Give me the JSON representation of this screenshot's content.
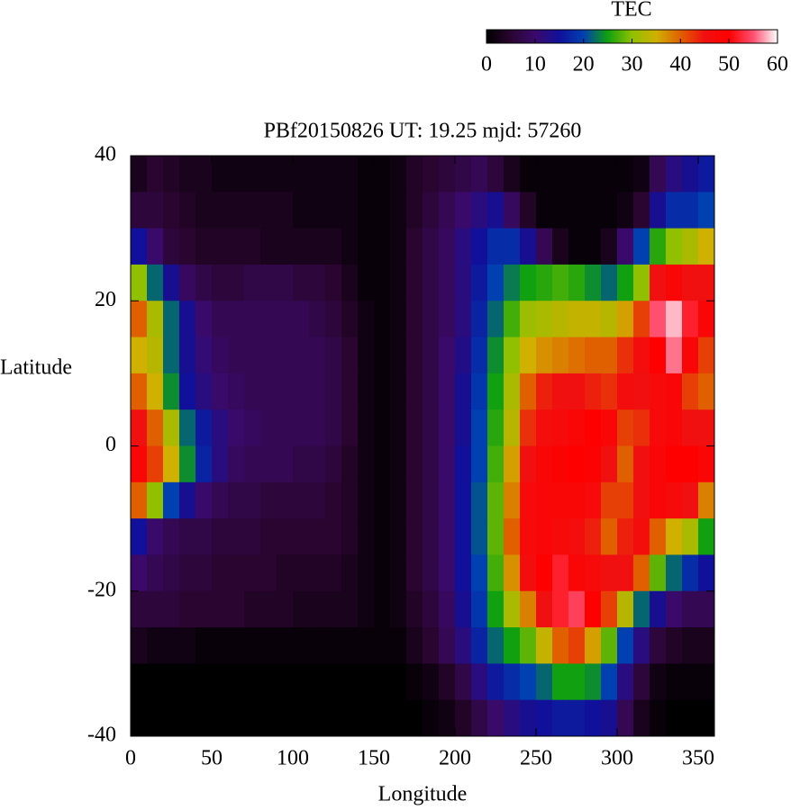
{
  "chart_data": {
    "type": "heatmap",
    "title": "PBf20150826  UT: 19.25  mjd: 57260",
    "x_label": "Longitude",
    "y_label": "Latitude",
    "xlim": [
      0,
      360
    ],
    "xticks": [
      0,
      50,
      100,
      150,
      200,
      250,
      300,
      350
    ],
    "ylim": [
      -40,
      40
    ],
    "yticks": [
      -40,
      -20,
      0,
      20,
      40
    ],
    "x": [
      5,
      15,
      25,
      35,
      45,
      55,
      65,
      75,
      85,
      95,
      105,
      115,
      125,
      135,
      145,
      155,
      165,
      175,
      185,
      195,
      205,
      215,
      225,
      235,
      245,
      255,
      265,
      275,
      285,
      295,
      305,
      315,
      325,
      335,
      345,
      355
    ],
    "y": [
      37.5,
      32.5,
      27.5,
      22.5,
      17.5,
      12.5,
      7.5,
      2.5,
      -2.5,
      -7.5,
      -12.5,
      -17.5,
      -22.5,
      -27.5,
      -32.5,
      -37.5
    ],
    "z": [
      [
        3,
        5,
        4,
        3,
        3,
        2,
        2,
        2,
        2,
        2,
        2,
        2,
        2,
        2,
        1,
        1,
        2,
        4,
        5,
        6,
        7,
        8,
        6,
        3,
        1,
        1,
        1,
        1,
        1,
        1,
        1,
        2,
        8,
        12,
        14,
        16
      ],
      [
        6,
        6,
        5,
        4,
        3,
        3,
        3,
        3,
        3,
        3,
        2,
        2,
        2,
        2,
        1,
        1,
        2,
        4,
        6,
        8,
        10,
        12,
        14,
        9,
        4,
        1,
        1,
        1,
        1,
        1,
        2,
        5,
        14,
        18,
        18,
        20
      ],
      [
        15,
        10,
        6,
        5,
        4,
        4,
        4,
        4,
        3,
        3,
        3,
        3,
        3,
        2,
        1,
        1,
        2,
        5,
        7,
        9,
        12,
        15,
        18,
        18,
        14,
        8,
        3,
        1,
        1,
        3,
        10,
        20,
        26,
        30,
        32,
        35
      ],
      [
        30,
        22,
        14,
        9,
        7,
        6,
        6,
        7,
        7,
        7,
        6,
        6,
        5,
        3,
        1,
        1,
        2,
        5,
        7,
        9,
        12,
        16,
        20,
        23,
        25,
        26,
        27,
        26,
        24,
        22,
        25,
        30,
        45,
        48,
        45,
        45
      ],
      [
        40,
        32,
        22,
        14,
        10,
        8,
        8,
        8,
        8,
        8,
        8,
        7,
        6,
        4,
        2,
        1,
        2,
        5,
        7,
        9,
        12,
        17,
        22,
        27,
        31,
        32,
        33,
        34,
        34,
        33,
        36,
        42,
        55,
        58,
        52,
        48
      ],
      [
        35,
        33,
        22,
        14,
        11,
        9,
        8,
        8,
        8,
        8,
        8,
        8,
        7,
        5,
        2,
        1,
        2,
        5,
        7,
        10,
        13,
        18,
        24,
        30,
        35,
        37,
        38,
        39,
        40,
        40,
        43,
        46,
        50,
        56,
        48,
        42
      ],
      [
        40,
        35,
        24,
        15,
        12,
        10,
        9,
        8,
        8,
        8,
        8,
        8,
        7,
        5,
        2,
        1,
        2,
        5,
        7,
        10,
        14,
        19,
        25,
        32,
        40,
        44,
        45,
        45,
        44,
        43,
        46,
        45,
        47,
        48,
        42,
        40
      ],
      [
        45,
        40,
        32,
        22,
        16,
        12,
        10,
        9,
        8,
        8,
        8,
        8,
        7,
        5,
        2,
        1,
        2,
        5,
        7,
        10,
        14,
        20,
        26,
        33,
        43,
        46,
        47,
        48,
        50,
        48,
        42,
        43,
        47,
        48,
        45,
        45
      ],
      [
        48,
        42,
        35,
        24,
        17,
        12,
        9,
        8,
        8,
        8,
        7,
        7,
        6,
        4,
        2,
        1,
        2,
        5,
        7,
        10,
        15,
        20,
        27,
        36,
        45,
        48,
        49,
        50,
        49,
        45,
        40,
        45,
        48,
        50,
        50,
        48
      ],
      [
        40,
        30,
        20,
        14,
        10,
        8,
        7,
        7,
        6,
        6,
        6,
        6,
        5,
        4,
        2,
        1,
        2,
        5,
        7,
        10,
        15,
        21,
        28,
        38,
        47,
        48,
        48,
        48,
        47,
        42,
        42,
        45,
        48,
        47,
        45,
        38
      ],
      [
        15,
        10,
        8,
        7,
        7,
        6,
        6,
        6,
        5,
        5,
        5,
        5,
        5,
        4,
        2,
        1,
        2,
        5,
        7,
        10,
        15,
        21,
        28,
        40,
        47,
        48,
        47,
        46,
        44,
        40,
        44,
        46,
        40,
        35,
        32,
        25
      ],
      [
        10,
        8,
        7,
        6,
        6,
        5,
        5,
        5,
        5,
        4,
        4,
        4,
        4,
        3,
        2,
        1,
        2,
        5,
        7,
        10,
        15,
        20,
        27,
        37,
        46,
        50,
        52,
        48,
        47,
        45,
        45,
        40,
        28,
        22,
        18,
        15
      ],
      [
        6,
        6,
        6,
        5,
        5,
        5,
        5,
        4,
        4,
        4,
        3,
        3,
        3,
        3,
        2,
        1,
        2,
        4,
        6,
        9,
        14,
        19,
        25,
        32,
        38,
        45,
        52,
        54,
        50,
        42,
        33,
        22,
        14,
        10,
        8,
        8
      ],
      [
        3,
        2,
        2,
        2,
        1,
        1,
        1,
        1,
        1,
        1,
        1,
        1,
        1,
        1,
        1,
        1,
        1,
        3,
        5,
        8,
        12,
        17,
        22,
        25,
        28,
        34,
        40,
        42,
        36,
        28,
        20,
        12,
        6,
        4,
        3,
        3
      ],
      [
        0,
        0,
        0,
        0,
        0,
        0,
        0,
        0,
        0,
        0,
        0,
        0,
        0,
        0,
        0,
        0,
        0,
        1,
        2,
        4,
        7,
        12,
        16,
        18,
        20,
        22,
        25,
        25,
        24,
        20,
        12,
        6,
        2,
        1,
        1,
        1
      ],
      [
        0,
        0,
        0,
        0,
        0,
        0,
        0,
        0,
        0,
        0,
        0,
        0,
        0,
        0,
        0,
        0,
        0,
        0,
        1,
        2,
        4,
        7,
        10,
        12,
        14,
        15,
        16,
        16,
        15,
        14,
        8,
        3,
        1,
        0,
        0,
        0
      ]
    ],
    "colorbar": {
      "label": "TEC",
      "lim": [
        0,
        60
      ],
      "ticks": [
        0,
        10,
        20,
        30,
        40,
        50,
        60
      ],
      "colormap": [
        "#000000",
        "#2a0530",
        "#3a0a6a",
        "#10109a",
        "#0040b0",
        "#10a010",
        "#90c000",
        "#d0b000",
        "#e06000",
        "#f01010",
        "#ff0000",
        "#ff5070",
        "#ffffff"
      ]
    }
  }
}
